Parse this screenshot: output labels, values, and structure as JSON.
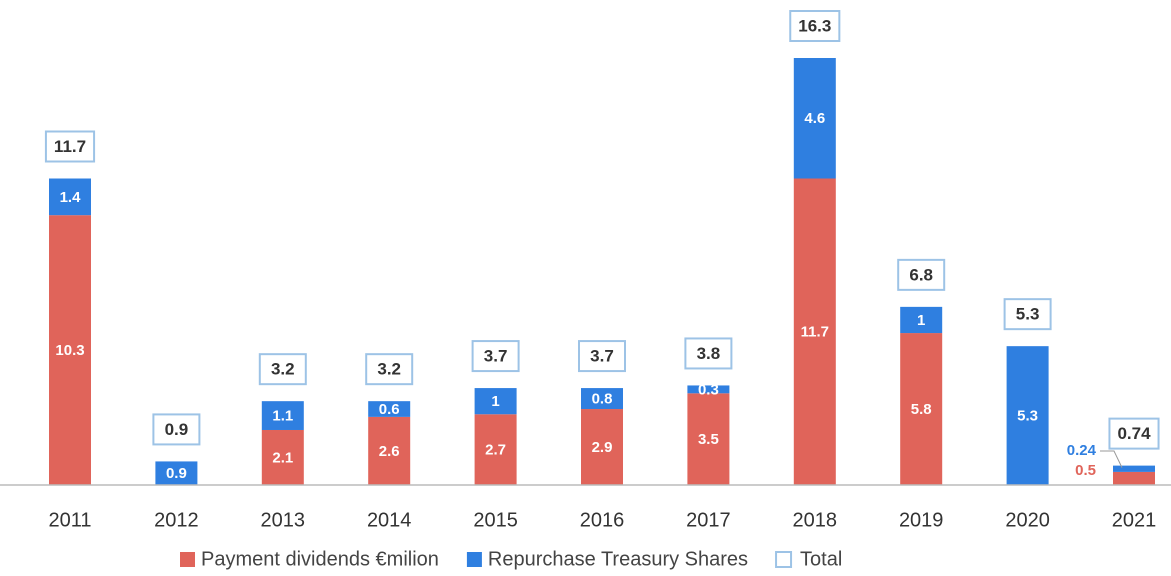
{
  "chart_data": {
    "type": "stacked-bar",
    "categories": [
      "2011",
      "2012",
      "2013",
      "2014",
      "2015",
      "2016",
      "2017",
      "2018",
      "2019",
      "2020",
      "2021"
    ],
    "series": [
      {
        "name": "Payment dividends €milion",
        "color": "#e0645a",
        "values": [
          10.3,
          null,
          2.1,
          2.6,
          2.7,
          2.9,
          3.5,
          11.7,
          5.8,
          null,
          0.5
        ]
      },
      {
        "name": "Repurchase Treasury Shares",
        "color": "#2f7fe0",
        "values": [
          1.4,
          0.9,
          1.1,
          0.6,
          1,
          0.8,
          0.3,
          4.6,
          1,
          5.3,
          0.24
        ]
      }
    ],
    "totals": {
      "name": "Total",
      "color": "#9dc3e6",
      "values": [
        11.7,
        0.9,
        3.2,
        3.2,
        3.7,
        3.7,
        3.8,
        16.3,
        6.8,
        5.3,
        0.74
      ]
    }
  }
}
